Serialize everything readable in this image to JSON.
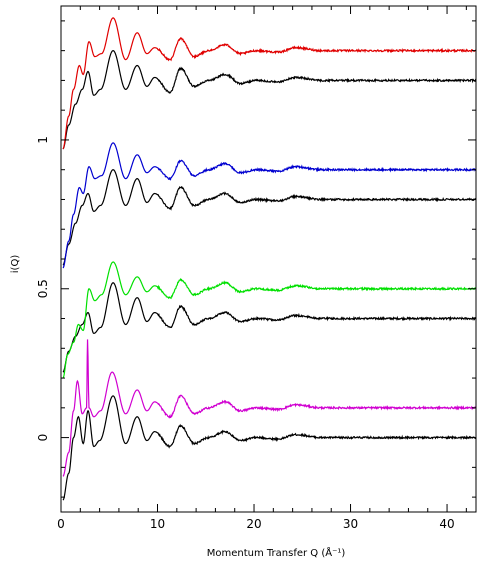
{
  "chart_data": {
    "type": "line",
    "xlabel": "Momentum Transfer Q (Å⁻¹)",
    "ylabel": "i(Q)",
    "xlim": [
      0,
      43
    ],
    "ylim": [
      -0.25,
      1.45
    ],
    "xticks": [
      0,
      10,
      20,
      30,
      40
    ],
    "yticks": [
      0,
      0.5,
      1
    ],
    "xtick_labels": [
      "0",
      "10",
      "20",
      "30",
      "40"
    ],
    "ytick_labels": [
      "0",
      "0.5",
      "1"
    ],
    "grid": false,
    "legend": "none",
    "colors": {
      "black": "#000000",
      "red": "#e00000",
      "blue": "#0000d0",
      "green": "#00e000",
      "magenta": "#d000d0"
    },
    "series": [
      {
        "color": "#000000",
        "offset": 0.0,
        "points": [
          [
            0.2,
            -0.21
          ],
          [
            0.8,
            -0.12
          ],
          [
            1.3,
            0.0
          ],
          [
            1.8,
            0.07
          ],
          [
            2.3,
            -0.02
          ],
          [
            2.8,
            0.09
          ],
          [
            3.4,
            -0.03
          ],
          [
            4.0,
            -0.01
          ],
          [
            5.4,
            0.14
          ],
          [
            6.7,
            -0.02
          ],
          [
            7.9,
            0.07
          ],
          [
            8.9,
            -0.01
          ],
          [
            9.7,
            0.02
          ],
          [
            11.3,
            -0.03
          ],
          [
            12.4,
            0.04
          ],
          [
            13.8,
            -0.02
          ],
          [
            15.3,
            0.0
          ],
          [
            17.0,
            0.02
          ],
          [
            18.6,
            -0.01
          ],
          [
            20.2,
            0.0
          ],
          [
            22.5,
            -0.005
          ],
          [
            24.3,
            0.01
          ],
          [
            27.0,
            0.0
          ],
          [
            43,
            0.0
          ]
        ]
      },
      {
        "color": "#d000d0",
        "offset": 0.1,
        "points": [
          [
            0.2,
            -0.13
          ],
          [
            0.8,
            -0.05
          ],
          [
            1.3,
            0.09
          ],
          [
            1.7,
            0.19
          ],
          [
            2.2,
            0.08
          ],
          [
            2.65,
            0.1
          ],
          [
            2.75,
            0.33
          ],
          [
            2.9,
            0.1
          ],
          [
            3.4,
            0.07
          ],
          [
            4.1,
            0.09
          ],
          [
            5.3,
            0.22
          ],
          [
            6.7,
            0.08
          ],
          [
            7.9,
            0.16
          ],
          [
            8.9,
            0.09
          ],
          [
            9.7,
            0.12
          ],
          [
            11.3,
            0.07
          ],
          [
            12.4,
            0.14
          ],
          [
            13.8,
            0.08
          ],
          [
            15.3,
            0.1
          ],
          [
            17.0,
            0.12
          ],
          [
            18.6,
            0.09
          ],
          [
            20.2,
            0.1
          ],
          [
            22.5,
            0.095
          ],
          [
            24.3,
            0.11
          ],
          [
            27.0,
            0.1
          ],
          [
            43,
            0.1
          ]
        ]
      },
      {
        "color": "#000000",
        "offset": 0.4,
        "points": [
          [
            0.2,
            0.22
          ],
          [
            0.8,
            0.29
          ],
          [
            1.5,
            0.34
          ],
          [
            2.2,
            0.38
          ],
          [
            2.8,
            0.42
          ],
          [
            3.4,
            0.35
          ],
          [
            4.1,
            0.37
          ],
          [
            5.4,
            0.52
          ],
          [
            6.7,
            0.38
          ],
          [
            7.9,
            0.47
          ],
          [
            8.9,
            0.39
          ],
          [
            9.7,
            0.42
          ],
          [
            11.3,
            0.37
          ],
          [
            12.4,
            0.44
          ],
          [
            13.8,
            0.38
          ],
          [
            15.3,
            0.4
          ],
          [
            17.0,
            0.42
          ],
          [
            18.6,
            0.39
          ],
          [
            20.2,
            0.4
          ],
          [
            22.5,
            0.395
          ],
          [
            24.3,
            0.41
          ],
          [
            27.0,
            0.4
          ],
          [
            43,
            0.4
          ]
        ]
      },
      {
        "color": "#00e000",
        "offset": 0.5,
        "points": [
          [
            0.2,
            0.2
          ],
          [
            0.7,
            0.28
          ],
          [
            1.3,
            0.32
          ],
          [
            1.8,
            0.38
          ],
          [
            2.3,
            0.36
          ],
          [
            2.9,
            0.5
          ],
          [
            3.5,
            0.46
          ],
          [
            4.2,
            0.48
          ],
          [
            5.4,
            0.59
          ],
          [
            6.7,
            0.48
          ],
          [
            7.9,
            0.54
          ],
          [
            8.9,
            0.49
          ],
          [
            9.7,
            0.51
          ],
          [
            11.3,
            0.47
          ],
          [
            12.4,
            0.53
          ],
          [
            13.8,
            0.48
          ],
          [
            15.3,
            0.5
          ],
          [
            17.0,
            0.52
          ],
          [
            18.6,
            0.49
          ],
          [
            20.2,
            0.5
          ],
          [
            22.5,
            0.495
          ],
          [
            24.3,
            0.51
          ],
          [
            27.0,
            0.5
          ],
          [
            43,
            0.5
          ]
        ]
      },
      {
        "color": "#000000",
        "offset": 0.8,
        "points": [
          [
            0.2,
            0.58
          ],
          [
            0.8,
            0.65
          ],
          [
            1.5,
            0.72
          ],
          [
            2.2,
            0.78
          ],
          [
            2.8,
            0.82
          ],
          [
            3.4,
            0.76
          ],
          [
            4.1,
            0.78
          ],
          [
            5.4,
            0.9
          ],
          [
            6.7,
            0.78
          ],
          [
            7.9,
            0.87
          ],
          [
            8.9,
            0.79
          ],
          [
            9.7,
            0.82
          ],
          [
            11.3,
            0.77
          ],
          [
            12.4,
            0.84
          ],
          [
            13.8,
            0.78
          ],
          [
            15.3,
            0.8
          ],
          [
            17.0,
            0.82
          ],
          [
            18.6,
            0.79
          ],
          [
            20.2,
            0.8
          ],
          [
            22.5,
            0.795
          ],
          [
            24.3,
            0.81
          ],
          [
            27.0,
            0.8
          ],
          [
            43,
            0.8
          ]
        ]
      },
      {
        "color": "#0000d0",
        "offset": 0.9,
        "points": [
          [
            0.2,
            0.57
          ],
          [
            0.8,
            0.66
          ],
          [
            1.3,
            0.75
          ],
          [
            1.9,
            0.84
          ],
          [
            2.3,
            0.82
          ],
          [
            2.9,
            0.91
          ],
          [
            3.5,
            0.87
          ],
          [
            4.2,
            0.88
          ],
          [
            5.4,
            0.99
          ],
          [
            6.7,
            0.87
          ],
          [
            7.9,
            0.95
          ],
          [
            8.9,
            0.89
          ],
          [
            9.7,
            0.91
          ],
          [
            11.3,
            0.87
          ],
          [
            12.4,
            0.93
          ],
          [
            13.8,
            0.88
          ],
          [
            15.3,
            0.9
          ],
          [
            17.0,
            0.92
          ],
          [
            18.6,
            0.89
          ],
          [
            20.2,
            0.9
          ],
          [
            22.5,
            0.895
          ],
          [
            24.3,
            0.91
          ],
          [
            27.0,
            0.9
          ],
          [
            43,
            0.9
          ]
        ]
      },
      {
        "color": "#000000",
        "offset": 1.2,
        "points": [
          [
            0.2,
            0.97
          ],
          [
            0.8,
            1.05
          ],
          [
            1.5,
            1.12
          ],
          [
            2.2,
            1.17
          ],
          [
            2.8,
            1.23
          ],
          [
            3.4,
            1.15
          ],
          [
            4.1,
            1.17
          ],
          [
            5.4,
            1.3
          ],
          [
            6.7,
            1.17
          ],
          [
            7.9,
            1.25
          ],
          [
            8.9,
            1.18
          ],
          [
            9.7,
            1.21
          ],
          [
            11.3,
            1.16
          ],
          [
            12.4,
            1.24
          ],
          [
            13.8,
            1.18
          ],
          [
            15.3,
            1.2
          ],
          [
            17.0,
            1.22
          ],
          [
            18.6,
            1.19
          ],
          [
            20.2,
            1.2
          ],
          [
            22.5,
            1.195
          ],
          [
            24.3,
            1.21
          ],
          [
            27.0,
            1.2
          ],
          [
            43,
            1.2
          ]
        ]
      },
      {
        "color": "#e00000",
        "offset": 1.3,
        "points": [
          [
            0.2,
            0.97
          ],
          [
            0.8,
            1.08
          ],
          [
            1.3,
            1.17
          ],
          [
            1.9,
            1.25
          ],
          [
            2.3,
            1.22
          ],
          [
            2.9,
            1.33
          ],
          [
            3.5,
            1.28
          ],
          [
            4.2,
            1.29
          ],
          [
            5.4,
            1.41
          ],
          [
            6.7,
            1.27
          ],
          [
            7.9,
            1.36
          ],
          [
            8.9,
            1.29
          ],
          [
            9.7,
            1.31
          ],
          [
            11.3,
            1.27
          ],
          [
            12.4,
            1.34
          ],
          [
            13.8,
            1.28
          ],
          [
            15.3,
            1.3
          ],
          [
            17.0,
            1.32
          ],
          [
            18.6,
            1.29
          ],
          [
            20.2,
            1.3
          ],
          [
            22.5,
            1.295
          ],
          [
            24.3,
            1.31
          ],
          [
            27.0,
            1.3
          ],
          [
            43,
            1.3
          ]
        ]
      }
    ]
  }
}
